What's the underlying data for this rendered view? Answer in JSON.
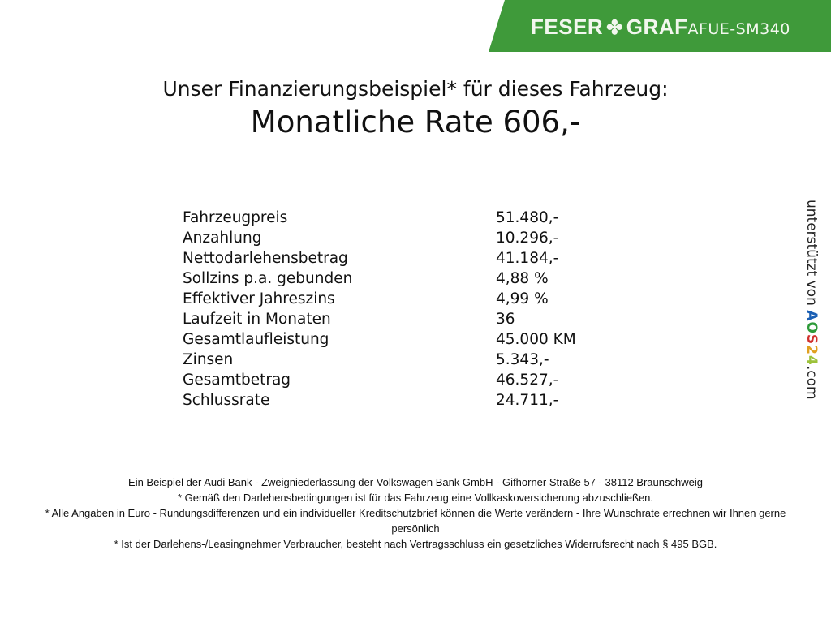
{
  "banner": {
    "brand": "FESER",
    "brand2": "GRAF",
    "code": "AFUE-SM340",
    "color": "#3f9a3a",
    "icon": "clover-icon"
  },
  "header": {
    "title": "Unser Finanzierungsbeispiel* für dieses Fahrzeug:",
    "rate": "Monatliche Rate 606,-"
  },
  "table": [
    {
      "label": "Fahrzeugpreis",
      "value": "51.480,-"
    },
    {
      "label": "Anzahlung",
      "value": "10.296,-"
    },
    {
      "label": "Nettodarlehensbetrag",
      "value": "41.184,-"
    },
    {
      "label": "Sollzins p.a. gebunden",
      "value": "4,88 %"
    },
    {
      "label": "Effektiver Jahreszins",
      "value": "4,99 %"
    },
    {
      "label": "Laufzeit in Monaten",
      "value": "36"
    },
    {
      "label": "Gesamtlaufleistung",
      "value": "45.000 KM"
    },
    {
      "label": "Zinsen",
      "value": "5.343,-"
    },
    {
      "label": "Gesamtbetrag",
      "value": "46.527,-"
    },
    {
      "label": "Schlussrate",
      "value": "24.711,-"
    }
  ],
  "side": {
    "prefix": "unterstützt von",
    "logo": "AOS24",
    "suffix": ".com"
  },
  "footer": [
    "Ein Beispiel der Audi Bank - Zweigniederlassung der Volkswagen Bank GmbH - Gifhorner Straße 57 - 38112 Braunschweig",
    "* Gemäß den Darlehensbedingungen ist für das Fahrzeug eine Vollkaskoversicherung abzuschließen.",
    "* Alle Angaben in Euro - Rundungsdifferenzen und ein individueller Kreditschutzbrief können die Werte verändern - Ihre Wunschrate errechnen wir Ihnen gerne persönlich",
    "* Ist der Darlehens-/Leasingnehmer Verbraucher, besteht nach Vertragsschluss ein gesetzliches Widerrufsrecht nach § 495 BGB."
  ]
}
